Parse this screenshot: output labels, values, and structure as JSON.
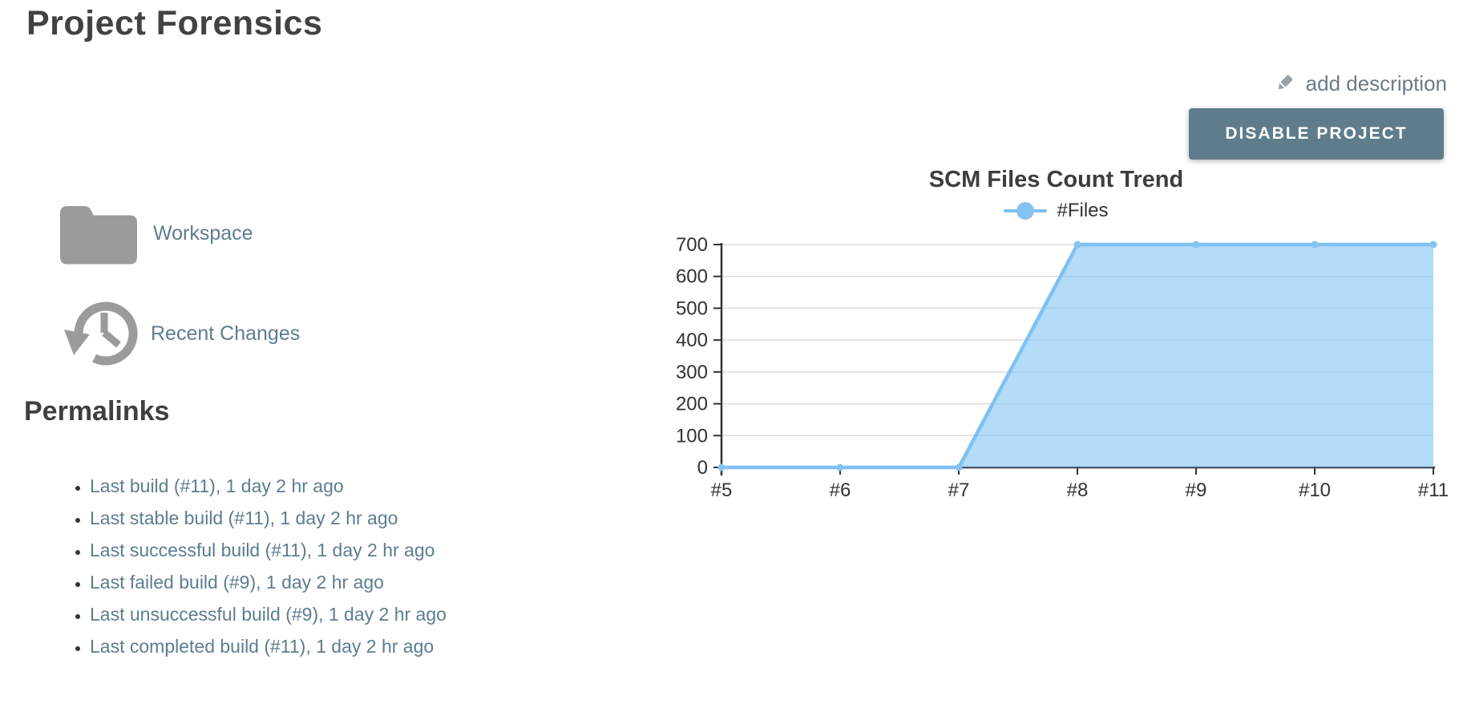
{
  "page": {
    "title": "Project Forensics"
  },
  "header": {
    "add_description_label": "add description",
    "disable_button_label": "DISABLE PROJECT"
  },
  "quick_links": {
    "workspace_label": "Workspace",
    "recent_changes_label": "Recent Changes"
  },
  "permalinks": {
    "heading": "Permalinks",
    "items": [
      "Last build (#11), 1 day 2 hr ago",
      "Last stable build (#11), 1 day 2 hr ago",
      "Last successful build (#11), 1 day 2 hr ago",
      "Last failed build (#9), 1 day 2 hr ago",
      "Last unsuccessful build (#9), 1 day 2 hr ago",
      "Last completed build (#11), 1 day 2 hr ago"
    ]
  },
  "colors": {
    "heading": "#424242",
    "link": "#5d7d8f",
    "button_bg": "#5e7c8c",
    "icon_gray": "#9b9b9b",
    "axis": "#333333",
    "grid": "#dcdcdc"
  },
  "chart_data": {
    "type": "area",
    "title": "SCM Files Count Trend",
    "categories": [
      "#5",
      "#6",
      "#7",
      "#8",
      "#9",
      "#10",
      "#11"
    ],
    "series": [
      {
        "name": "#Files",
        "values": [
          0,
          0,
          0,
          700,
          700,
          700,
          700
        ]
      }
    ],
    "xlabel": "",
    "ylabel": "",
    "ylim": [
      0,
      700
    ],
    "yticks": [
      0,
      100,
      200,
      300,
      400,
      500,
      600,
      700
    ],
    "legend_position": "top",
    "grid": "horizontal",
    "line_color": "#7ec1f2",
    "fill_color": "#7ec1f2",
    "fill_opacity": 0.58,
    "marker_color": "#85c3f2"
  }
}
